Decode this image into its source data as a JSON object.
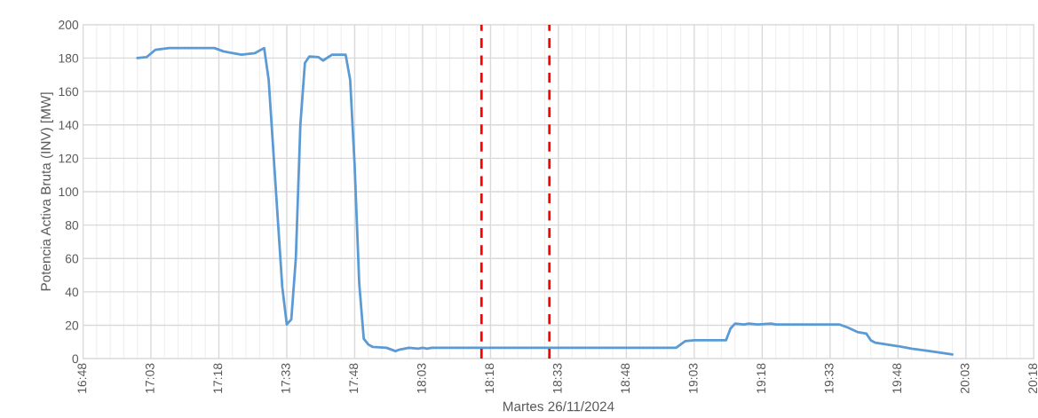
{
  "chart_data": {
    "type": "line",
    "xlabel": "Martes 26/11/2024",
    "ylabel": "Potencia Activa Bruta (INV) [MW]",
    "x": [
      17.0,
      17.0333,
      17.0667,
      17.1167,
      17.2833,
      17.3167,
      17.3833,
      17.4333,
      17.4667,
      17.4833,
      17.5333,
      17.55,
      17.5667,
      17.5833,
      17.6,
      17.6167,
      17.6333,
      17.6667,
      17.6833,
      17.7167,
      17.7667,
      17.7833,
      17.8,
      17.8167,
      17.8333,
      17.85,
      17.8667,
      17.9167,
      17.95,
      17.9667,
      18.0,
      18.0333,
      18.05,
      18.0667,
      18.0833,
      18.1167,
      18.9833,
      19.0167,
      19.05,
      19.1667,
      19.1833,
      19.2,
      19.2333,
      19.25,
      19.2833,
      19.3333,
      19.35,
      19.5833,
      19.6167,
      19.65,
      19.6833,
      19.7,
      19.7167,
      19.8,
      19.85,
      19.9167,
      20.0
    ],
    "series": [
      {
        "color": "#5b9bd5",
        "values": [
          180,
          180.5,
          185,
          186,
          186,
          184,
          182,
          183,
          186,
          167,
          43,
          20.5,
          23.5,
          60,
          140,
          177,
          181,
          180.5,
          178.5,
          182,
          182,
          167,
          115,
          45,
          12,
          8.5,
          7,
          6.5,
          4.5,
          5.5,
          6.5,
          6,
          6.5,
          6,
          6.5,
          6.5,
          6.5,
          10.5,
          11,
          11,
          18,
          21,
          20.5,
          21,
          20.5,
          21,
          20.5,
          20.5,
          18.5,
          16,
          15,
          11,
          9.5,
          7.5,
          6,
          4.5,
          2.5
        ]
      }
    ],
    "xlim": [
      16.8,
      20.3
    ],
    "xticks": [
      {
        "value": 16.8,
        "label": "16:48"
      },
      {
        "value": 17.05,
        "label": "17:03"
      },
      {
        "value": 17.3,
        "label": "17:18"
      },
      {
        "value": 17.55,
        "label": "17:33"
      },
      {
        "value": 17.8,
        "label": "17:48"
      },
      {
        "value": 18.05,
        "label": "18:03"
      },
      {
        "value": 18.3,
        "label": "18:18"
      },
      {
        "value": 18.55,
        "label": "18:33"
      },
      {
        "value": 18.8,
        "label": "18:48"
      },
      {
        "value": 19.05,
        "label": "19:03"
      },
      {
        "value": 19.3,
        "label": "19:18"
      },
      {
        "value": 19.55,
        "label": "19:33"
      },
      {
        "value": 19.8,
        "label": "19:48"
      },
      {
        "value": 20.05,
        "label": "20:03"
      },
      {
        "value": 20.3,
        "label": "20:18"
      }
    ],
    "ylim": [
      0,
      200
    ],
    "yticks": [
      0,
      20,
      40,
      60,
      80,
      100,
      120,
      140,
      160,
      180,
      200
    ],
    "grid": true,
    "marker": "none",
    "line_style": "solid",
    "ref_lines": [
      {
        "axis": "x",
        "value": 18.2667,
        "color": "#ff0000",
        "line_style": "dashed"
      },
      {
        "axis": "x",
        "value": 18.5167,
        "color": "#ff0000",
        "line_style": "dashed"
      }
    ]
  }
}
